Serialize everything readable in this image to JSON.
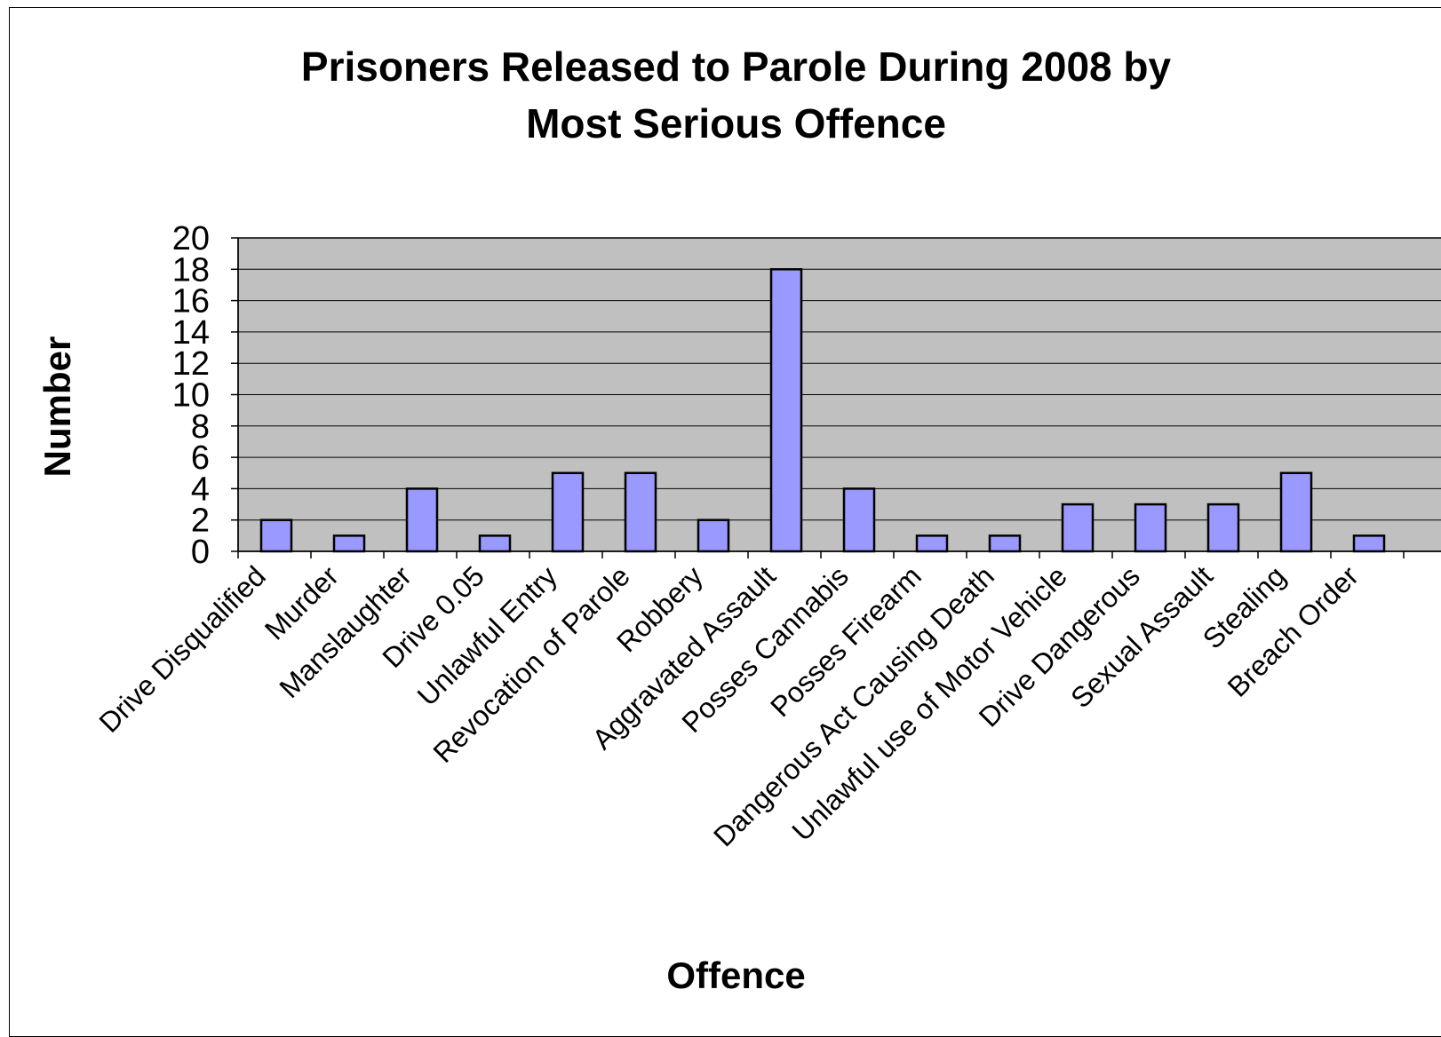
{
  "chart_data": {
    "type": "bar",
    "title": "Prisoners Released to Parole During 2008 by Most Serious Offence",
    "title_lines": [
      "Prisoners Released to Parole During 2008 by",
      "Most Serious Offence"
    ],
    "xlabel": "Offence",
    "ylabel": "Number",
    "ylim": [
      0,
      20
    ],
    "yticks": [
      "0",
      "2",
      "4",
      "6",
      "8",
      "10",
      "12",
      "14",
      "16",
      "18",
      "20"
    ],
    "grid": true,
    "legend": "none",
    "categories": [
      "Drive Disqualified",
      "Murder",
      "Manslaughter",
      "Drive 0.05",
      "Unlawful Entry",
      "Revocation of Parole",
      "Robbery",
      "Aggravated Assault",
      "Posses Cannabis",
      "Posses Firearm",
      "Dangerous Act Causing Death",
      "Unlawful use of Motor Vehicle",
      "Drive Dangerous",
      "Sexual Assault",
      "Stealing",
      "Breach Order"
    ],
    "values": [
      2,
      1,
      4,
      1,
      5,
      5,
      2,
      18,
      4,
      1,
      1,
      3,
      3,
      3,
      5,
      1
    ],
    "colors": {
      "bar_fill": "#9999ff",
      "bar_stroke": "#000000",
      "plot_background": "#c0c0c0",
      "gridline": "#000000"
    }
  }
}
